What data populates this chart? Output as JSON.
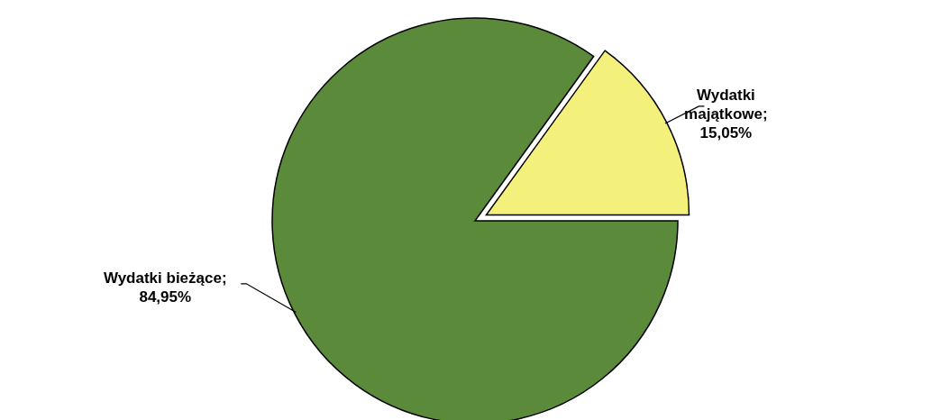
{
  "chart_data": {
    "type": "pie",
    "categories": [
      "Wydatki majątkowe",
      "Wydatki bieżące"
    ],
    "values": [
      15.05,
      84.95
    ],
    "colors": [
      "#f4f07c",
      "#5b8a3a"
    ],
    "value_labels": [
      "; 15,05%",
      "; 84,95%"
    ]
  }
}
